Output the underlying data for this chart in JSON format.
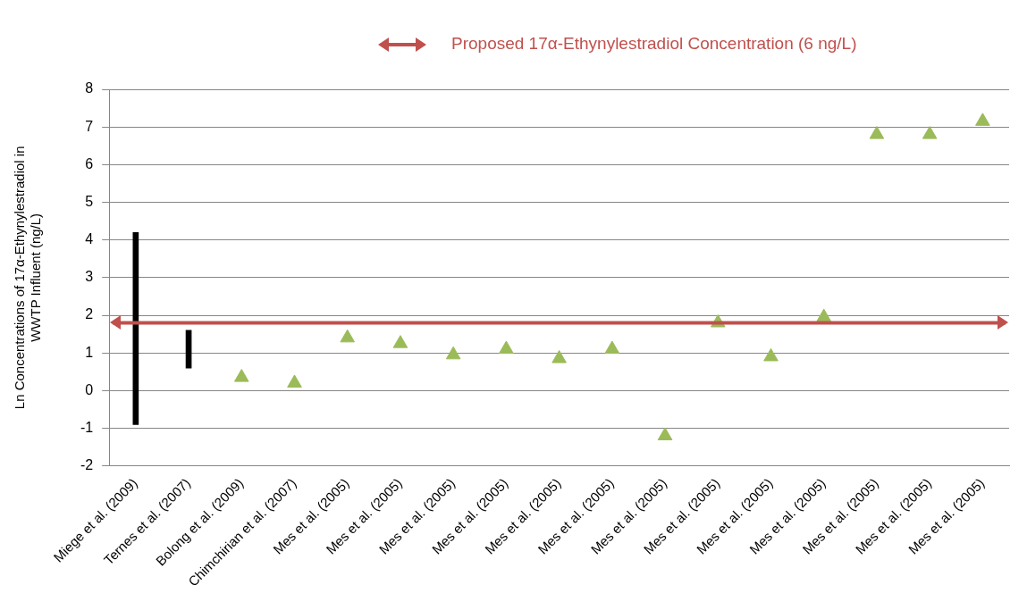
{
  "chart_data": {
    "type": "bar",
    "ylabel": "Ln Concentrations of 17α-Ethynylestradiol in WWTP Influent (ng/L)",
    "categories": [
      "Miege et al. (2009)",
      "Ternes et al. (2007)",
      "Bolong et al. (2009)",
      "Chimchirian et al. (2007)",
      "Mes et al. (2005)",
      "Mes et al. (2005)",
      "Mes et al. (2005)",
      "Mes et al. (2005)",
      "Mes et al. (2005)",
      "Mes et al. (2005)",
      "Mes et al. (2005)",
      "Mes et al. (2005)",
      "Mes et al. (2005)",
      "Mes et al. (2005)",
      "Mes et al. (2005)",
      "Mes et al. (2005)",
      "Mes et al. (2005)"
    ],
    "series": [
      {
        "type": "bar",
        "color": "#000000",
        "base": [
          -0.9,
          0.6,
          null,
          null,
          null,
          null,
          null,
          null,
          null,
          null,
          null,
          null,
          null,
          null,
          null,
          null,
          null
        ],
        "values": [
          5.1,
          1.0,
          null,
          null,
          null,
          null,
          null,
          null,
          null,
          null,
          null,
          null,
          null,
          null,
          null,
          null,
          null
        ]
      },
      {
        "type": "scatter",
        "color": "#9bbb59",
        "marker": "triangle",
        "values": [
          null,
          null,
          0.35,
          0.2,
          1.4,
          1.25,
          0.95,
          1.1,
          0.85,
          1.1,
          -1.2,
          1.8,
          0.9,
          1.95,
          6.8,
          6.8,
          7.15
        ]
      }
    ],
    "ylim": [
      -2,
      8
    ],
    "yticks": [
      -2,
      -1,
      0,
      1,
      2,
      3,
      4,
      5,
      6,
      7,
      8
    ],
    "grid": "y",
    "ref_lines": [
      {
        "axis": "y",
        "value": 1.8,
        "label": "Proposed 17α-Ethynylestradiol Concentration (6 ng/L)",
        "color": "#c0504d"
      }
    ]
  }
}
